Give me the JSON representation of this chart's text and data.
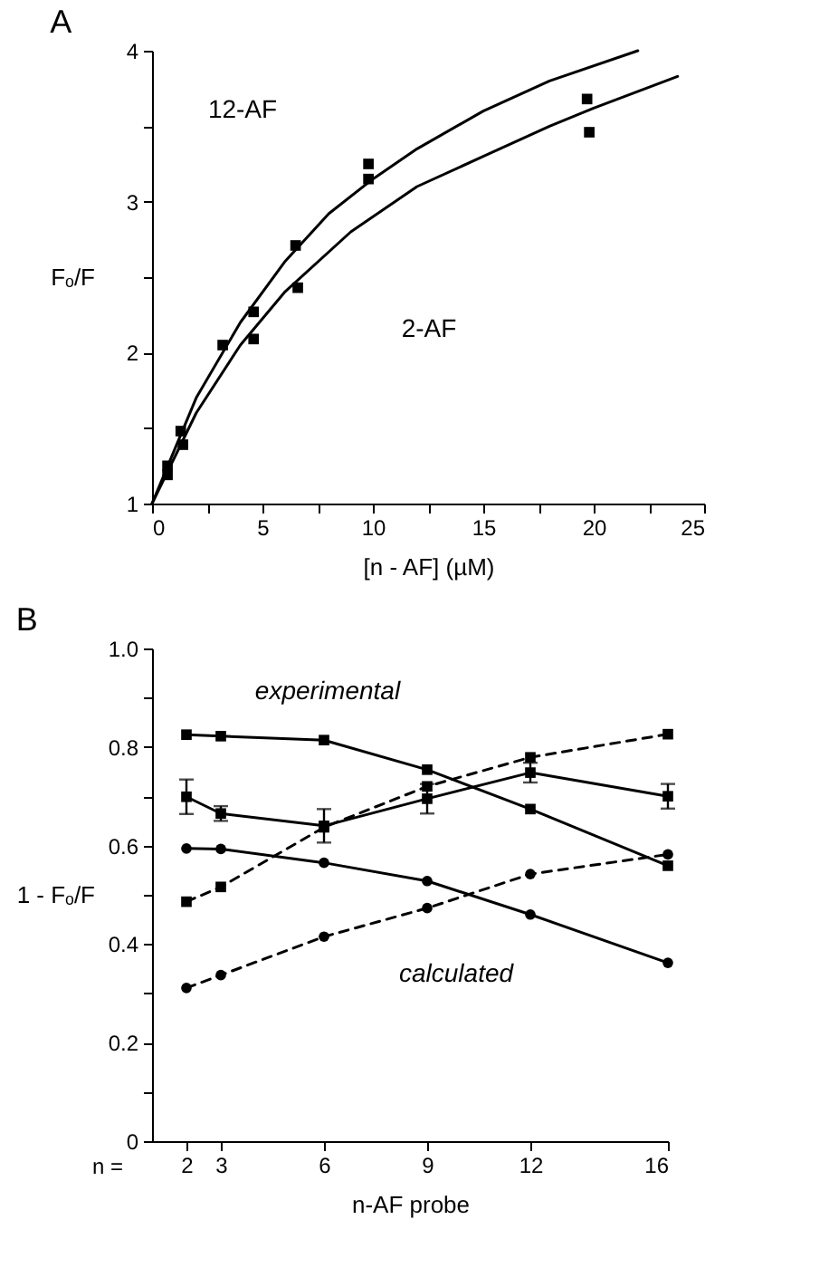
{
  "chart_data": [
    {
      "type": "scatter",
      "title": "A",
      "xlabel": "[n - AF] (µM)",
      "ylabel": "Fₒ/F",
      "xlim": [
        0,
        25
      ],
      "ylim": [
        1,
        4
      ],
      "xticks": [
        0,
        {
          "value": 2.5,
          "label": null
        },
        5,
        {
          "value": 7.5,
          "label": null
        },
        10,
        {
          "value": 12.5,
          "label": null
        },
        15,
        {
          "value": 17.5,
          "label": null
        },
        20,
        {
          "value": 22.5,
          "label": null
        },
        25
      ],
      "yticks": [
        1,
        {
          "value": 1.5,
          "label": null
        },
        2,
        {
          "value": 2.5,
          "label": null
        },
        3,
        {
          "value": 3.5,
          "label": null
        },
        4
      ],
      "annotations": [
        "12-AF",
        "2-AF"
      ],
      "series": [
        {
          "marker": "square",
          "color": "#000000",
          "x": [
            0.7,
            1.3,
            3.2,
            4.6,
            6.5,
            9.8,
            19.7
          ],
          "values": [
            1.25,
            1.48,
            2.05,
            2.27,
            2.71,
            3.25,
            3.68
          ]
        },
        {
          "marker": "square",
          "color": "#000000",
          "x": [
            0.7,
            1.4,
            4.6,
            6.6,
            9.8,
            19.8
          ],
          "values": [
            1.19,
            1.39,
            2.09,
            2.43,
            3.15,
            3.46
          ]
        },
        {
          "type": "line",
          "marker": "none",
          "line_style": "solid",
          "color": "#000000",
          "x": [
            0,
            1,
            2,
            4,
            6,
            8,
            10,
            12,
            15,
            18,
            22
          ],
          "values": [
            1,
            1.35,
            1.7,
            2.2,
            2.6,
            2.92,
            3.15,
            3.35,
            3.6,
            3.8,
            4
          ]
        },
        {
          "type": "line",
          "marker": "none",
          "line_style": "solid",
          "color": "#000000",
          "x": [
            0,
            1,
            2,
            4,
            6,
            9,
            12,
            15,
            18,
            20,
            23.8
          ],
          "values": [
            1,
            1.3,
            1.6,
            2.05,
            2.4,
            2.8,
            3.1,
            3.3,
            3.5,
            3.62,
            3.83
          ]
        }
      ]
    },
    {
      "type": "line",
      "title": "B",
      "xlabel": "n-AF probe",
      "ylabel": "1 - Fₒ/F",
      "xlim": [
        1,
        16
      ],
      "ylim": [
        0,
        1
      ],
      "x": [
        2,
        3,
        6,
        9,
        12,
        16
      ],
      "xticks": [
        2,
        3,
        6,
        9,
        12,
        16
      ],
      "yticks": [
        0,
        {
          "value": 0.1,
          "label": null
        },
        0.2,
        {
          "value": 0.3,
          "label": null
        },
        0.4,
        {
          "value": 0.5,
          "label": null
        },
        0.6,
        {
          "value": 0.7,
          "label": null
        },
        0.8,
        {
          "value": 0.9,
          "label": null
        },
        {
          "value": 1,
          "label": "1.0"
        }
      ],
      "annotations": [
        "experimental",
        "calculated",
        "n ="
      ],
      "series": [
        {
          "marker": "square",
          "line_style": "solid",
          "color": "#000000",
          "values": [
            0.825,
            0.822,
            0.814,
            0.754,
            0.674,
            0.559
          ]
        },
        {
          "marker": "circle",
          "line_style": "solid",
          "color": "#000000",
          "values": [
            0.594,
            0.593,
            0.565,
            0.528,
            0.46,
            0.362
          ]
        },
        {
          "marker": "square",
          "line_style": "dashed",
          "color": "#000000",
          "values": [
            0.486,
            0.516,
            0.637,
            0.72,
            0.779,
            0.826
          ]
        },
        {
          "marker": "circle",
          "line_style": "dashed",
          "color": "#000000",
          "values": [
            0.311,
            0.337,
            0.415,
            0.473,
            0.542,
            0.582
          ]
        },
        {
          "marker": "square",
          "line_style": "solid",
          "color": "#000000",
          "values": [
            0.699,
            0.665,
            0.64,
            0.695,
            0.748,
            0.7
          ],
          "errors": [
            0.035,
            0.015,
            0.034,
            0.03,
            0.02,
            0.025
          ]
        }
      ]
    }
  ]
}
